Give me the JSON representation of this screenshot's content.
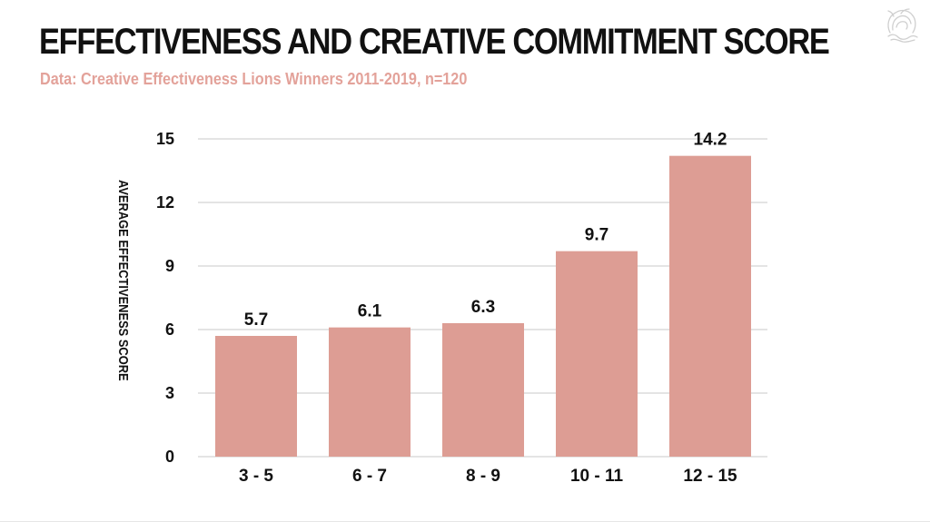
{
  "header": {
    "title": "EFFECTIVENESS AND CREATIVE COMMITMENT SCORE",
    "subtitle": "Data: Creative Effectiveness Lions Winners 2011-2019, n=120"
  },
  "logo": {
    "icon": "lion-logo-icon"
  },
  "colors": {
    "bar": "#dd9d94",
    "subtitle": "#e3a29a",
    "text": "#111111",
    "grid": "#c8c8c8"
  },
  "chart_data": {
    "type": "bar",
    "categories": [
      "3 - 5",
      "6 - 7",
      "8 - 9",
      "10 - 11",
      "12 - 15"
    ],
    "values": [
      5.7,
      6.1,
      6.3,
      9.7,
      14.2
    ],
    "value_labels": [
      "5.7",
      "6.1",
      "6.3",
      "9.7",
      "14.2"
    ],
    "ylabel": "AVERAGE EFFECTIVENESS SCORE",
    "xlabel": "",
    "ylim": [
      0,
      15
    ],
    "yticks": [
      0,
      3,
      6,
      9,
      12,
      15
    ],
    "grid": true,
    "legend": "none"
  }
}
